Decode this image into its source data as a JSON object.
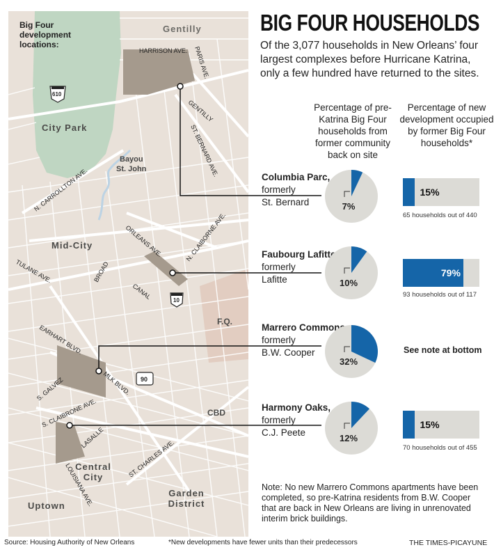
{
  "title": "BIG FOUR HOUSEHOLDS",
  "subtitle": "Of the 3,077 households in New Orleans’ four largest complexes before Hurricane Katrina, only a few hundred have returned to the sites.",
  "column_headers": {
    "returned": "Percentage of pre-Katrina Big Four households from former community back on site",
    "occupied": "Percentage of new development occupied by former Big Four households*"
  },
  "map": {
    "legend_title": "Big Four development locations:",
    "labels": {
      "gentilly_area": "Gentilly",
      "harrison": "HARRISON AVE.",
      "paris": "PARIS AVE.",
      "gentilly_st": "GENTILLY",
      "st_bernard": "ST. BERNARD AVE.",
      "i610": "610",
      "city_park": "City Park",
      "bayou": "Bayou St. John",
      "n_carrollton": "N. CARROLLTON AVE.",
      "orleans": "ORLEANS AVE.",
      "n_claiborne": "N. CLAIBORNE AVE.",
      "mid_city": "Mid-City",
      "tulane": "TULANE AVE.",
      "broad": "BROAD",
      "canal": "CANAL",
      "i10": "10",
      "fq": "F.Q.",
      "earhart": "EARHART BLVD.",
      "s_galvez": "S. GALVEZ",
      "mlk": "MLK BLVD.",
      "us90": "90",
      "cbd": "CBD",
      "s_claibrone": "S. CLAIBRONE AVE.",
      "lasalle": "LASALLE",
      "louisiana": "LOUISIANA AVE.",
      "st_charles": "ST. CHARLES AVE.",
      "central_city": "Central City",
      "garden_district": "Garden District",
      "uptown": "Uptown"
    }
  },
  "chart_data": [
    {
      "type": "pie",
      "title": "Percentage of pre-Katrina Big Four households from former community back on site",
      "categories": [
        "Columbia Parc",
        "Faubourg Lafitte",
        "Marrero Commons",
        "Harmony Oaks"
      ],
      "values": [
        7,
        10,
        32,
        12
      ],
      "value_labels": [
        "7%",
        "10%",
        "32%",
        "12%"
      ],
      "unit": "%"
    },
    {
      "type": "bar",
      "title": "Percentage of new development occupied by former Big Four households*",
      "categories": [
        "Columbia Parc",
        "Faubourg Lafitte",
        "Harmony Oaks"
      ],
      "values": [
        15,
        79,
        15
      ],
      "value_labels": [
        "15%",
        "79%",
        "15%"
      ],
      "notes": [
        "65 households out of 440",
        "93 households out of 117",
        "70 households out of 455"
      ],
      "ylim": [
        0,
        100
      ],
      "unit": "%"
    }
  ],
  "rows": [
    {
      "name": "Columbia Parc,",
      "formerly": "formerly",
      "old_name": "St. Bernard"
    },
    {
      "name": "Faubourg Lafitte,",
      "formerly": "formerly",
      "old_name": "Lafitte"
    },
    {
      "name": "Marrero Commons,",
      "formerly": "formerly",
      "old_name": "B.W. Cooper"
    },
    {
      "name": "Harmony Oaks,",
      "formerly": "formerly",
      "old_name": "C.J. Peete"
    }
  ],
  "see_note": "See note at bottom",
  "note": "Note: No new Marrero Commons apartments have been completed, so pre-Katrina residents from B.W. Cooper that are back in New Orleans are living in unrenovated interim brick buildings.",
  "footer": {
    "source": "Source: Housing Authority of New Orleans",
    "footnote": "*New developments have fewer units than their predecessors",
    "credit": "THE TIMES-PICAYUNE"
  },
  "colors": {
    "accent": "#1565a8",
    "pie_bg": "#dcdbd6",
    "map_bg": "#e9e1d9",
    "park": "#bfd6c2",
    "development": "#a59a8d",
    "fq": "#e2cdc1"
  }
}
